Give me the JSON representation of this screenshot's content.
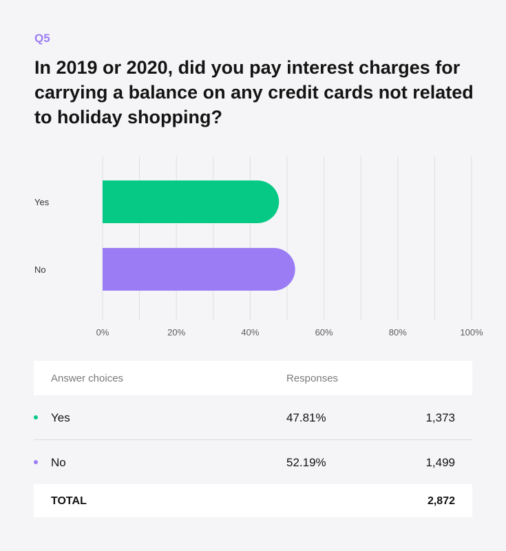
{
  "question": {
    "number": "Q5",
    "title": "In 2019 or 2020, did you pay interest charges for carrying a balance on any credit cards not related to holiday shopping?"
  },
  "chart_data": {
    "type": "bar",
    "orientation": "horizontal",
    "categories": [
      "Yes",
      "No"
    ],
    "values": [
      47.81,
      52.19
    ],
    "colors": [
      "#05c985",
      "#9b7cf5"
    ],
    "xlim": [
      0,
      100
    ],
    "xticks": [
      "0%",
      "20%",
      "40%",
      "60%",
      "80%",
      "100%"
    ],
    "grid": true,
    "title": "",
    "xlabel": "",
    "ylabel": ""
  },
  "table": {
    "headers": {
      "choice": "Answer choices",
      "responses": "Responses"
    },
    "rows": [
      {
        "label": "Yes",
        "percent": "47.81%",
        "count": "1,373",
        "color": "#05c985"
      },
      {
        "label": "No",
        "percent": "52.19%",
        "count": "1,499",
        "color": "#9b7cf5"
      }
    ],
    "total": {
      "label": "TOTAL",
      "count": "2,872"
    }
  }
}
